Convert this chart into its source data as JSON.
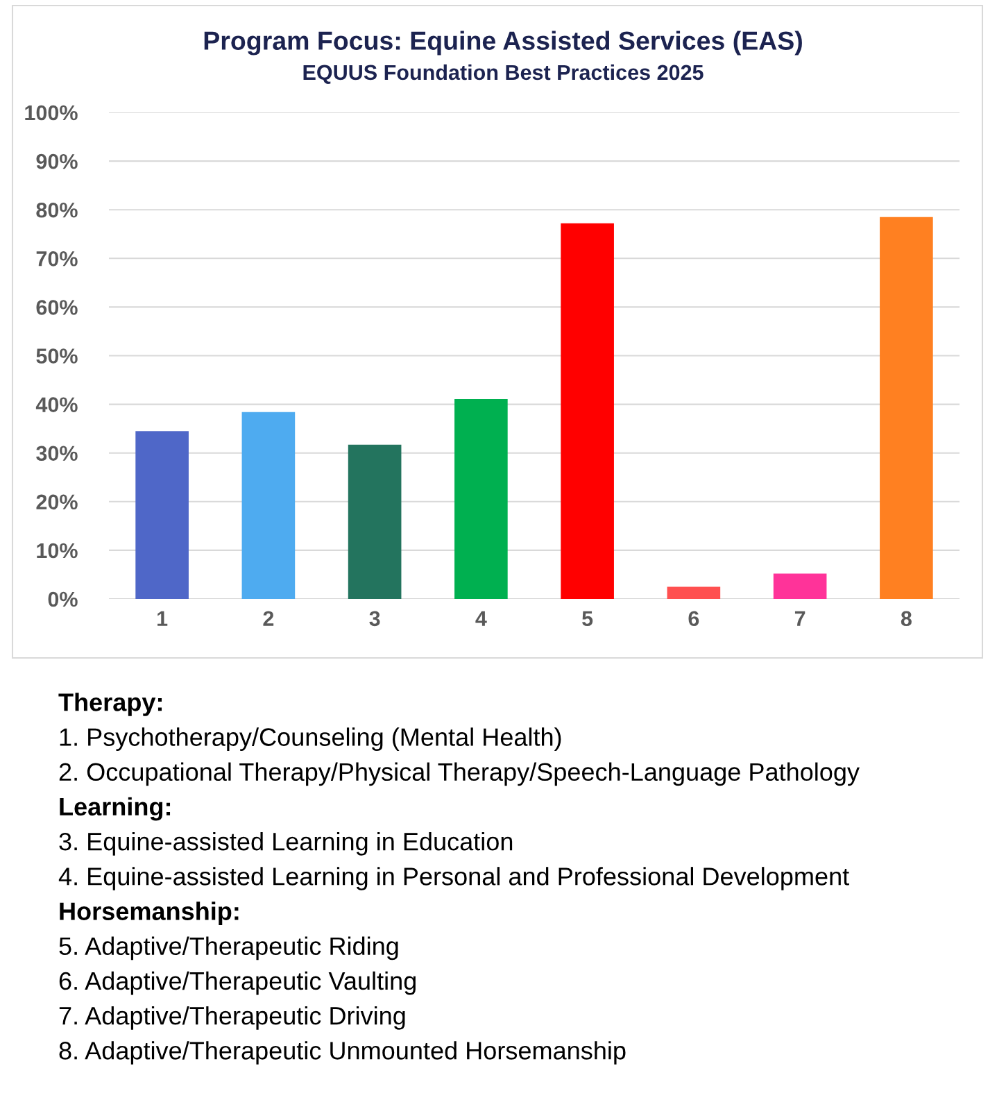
{
  "chart_data": {
    "type": "bar",
    "title": "Program Focus: Equine Assisted Services (EAS)",
    "subtitle": "EQUUS Foundation Best Practices 2025",
    "categories": [
      "1",
      "2",
      "3",
      "4",
      "5",
      "6",
      "7",
      "8"
    ],
    "values": [
      34.5,
      38.4,
      31.7,
      41.1,
      77.2,
      2.5,
      5.2,
      78.5
    ],
    "colors": [
      "#4f67c8",
      "#4eabf0",
      "#23745e",
      "#00b050",
      "#ff0000",
      "#ff5050",
      "#ff3399",
      "#ff8021"
    ],
    "ylim": [
      0,
      100
    ],
    "yticks": [
      {
        "value": 0,
        "label": "0%"
      },
      {
        "value": 10,
        "label": "10%"
      },
      {
        "value": 20,
        "label": "20%"
      },
      {
        "value": 30,
        "label": "30%"
      },
      {
        "value": 40,
        "label": "40%"
      },
      {
        "value": 50,
        "label": "50%"
      },
      {
        "value": 60,
        "label": "60%"
      },
      {
        "value": 70,
        "label": "70%"
      },
      {
        "value": 80,
        "label": "80%"
      },
      {
        "value": 90,
        "label": "90%"
      },
      {
        "value": 100,
        "label": "100%"
      }
    ],
    "grid": "y",
    "legend": false,
    "annotations": [
      "Therapy:",
      "1. Psychotherapy/Counseling (Mental Health)",
      "2. Occupational Therapy/Physical Therapy/Speech-Language Pathology",
      "Learning:",
      "3. Equine-assisted Learning in Education",
      "4. Equine-assisted Learning in Personal and Professional Development",
      "Horsemanship:",
      "5. Adaptive/Therapeutic Riding",
      "6. Adaptive/Therapeutic Vaulting",
      "7. Adaptive/Therapeutic Driving",
      "8. Adaptive/Therapeutic Unmounted Horsemanship"
    ]
  }
}
